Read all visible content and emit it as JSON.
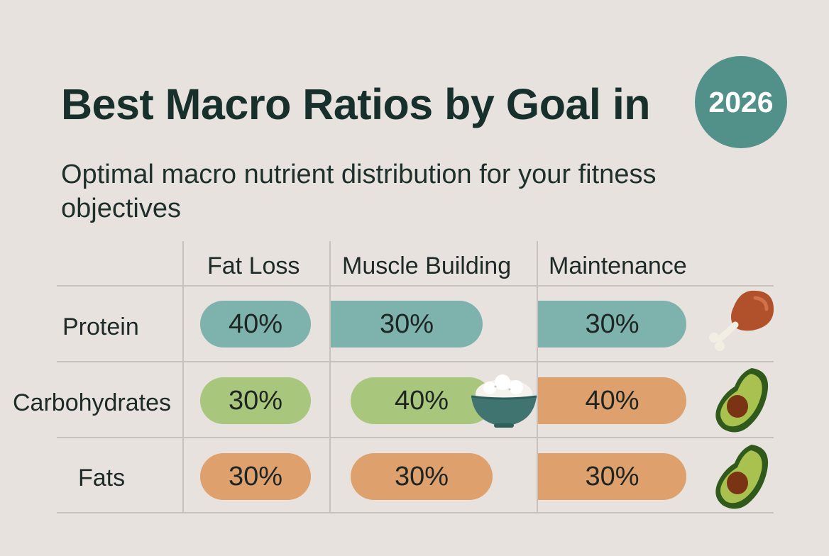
{
  "header": {
    "title": "Best Macro Ratios by Goal in",
    "year": "2026",
    "subtitle": "Optimal macro nutrient distribution for your fitness objectives"
  },
  "table": {
    "columns": [
      "Fat Loss",
      "Muscle Building",
      "Maintenance"
    ],
    "rows": [
      {
        "label": "Protein",
        "values": [
          "40%",
          "30%",
          "30%"
        ],
        "icon": "chicken-leg-icon"
      },
      {
        "label": "Carbohydrates",
        "values": [
          "30%",
          "40%",
          "40%"
        ],
        "icon": "avocado-icon"
      },
      {
        "label": "Fats",
        "values": [
          "30%",
          "30%",
          "30%"
        ],
        "icon": "avocado-icon"
      }
    ],
    "extra_icon": "rice-bowl-icon"
  },
  "colors": {
    "background": "#e7e2dd",
    "badge": "#52918a",
    "protein": "#7eb2ad",
    "carbohydrates": "#a9c77c",
    "fats": "#dea06d"
  }
}
